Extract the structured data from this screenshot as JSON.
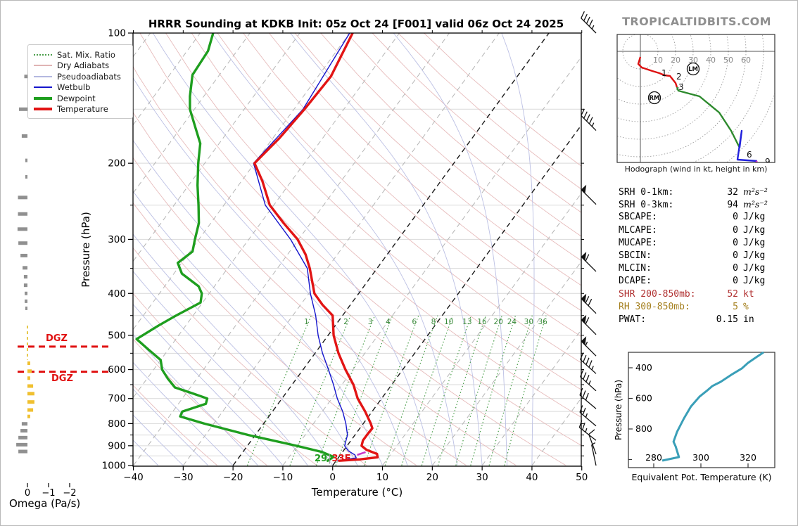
{
  "header": {
    "title": "HRRR Sounding at KDKB Init: 05z Oct 24 [F001] valid 06z Oct 24 2025",
    "logo": "TROPICALTIDBITS.COM"
  },
  "legend": {
    "items": [
      {
        "label": "Sat. Mix. Ratio",
        "style": "dotted",
        "color": "#4a9e4a",
        "width": 2
      },
      {
        "label": "Dry Adiabats",
        "style": "solid",
        "color": "#e0b4b4",
        "width": 2
      },
      {
        "label": "Pseudoadiabats",
        "style": "solid",
        "color": "#b4b8e0",
        "width": 2
      },
      {
        "label": "Wetbulb",
        "style": "solid",
        "color": "#1515cc",
        "width": 2
      },
      {
        "label": "Dewpoint",
        "style": "solid",
        "color": "#1e9e1e",
        "width": 4
      },
      {
        "label": "Temperature",
        "style": "solid",
        "color": "#e21414",
        "width": 4
      }
    ]
  },
  "skewt": {
    "xlabel": "Temperature (°C)",
    "ylabel": "Pressure (hPa)",
    "dgz_label": "DGZ",
    "surface": {
      "dewpoint_label": "29",
      "divider": "|",
      "temperature_label": "33F"
    }
  },
  "omega_axis": {
    "label": "Omega (Pa/s)",
    "ticks": [
      0,
      -1,
      -2
    ]
  },
  "stats": {
    "rows": [
      {
        "label": "SRH 0-1km:",
        "value": "32",
        "unit": "m²s⁻²",
        "math": true,
        "color": "#000000"
      },
      {
        "label": "SRH 0-3km:",
        "value": "94",
        "unit": "m²s⁻²",
        "math": true,
        "color": "#000000"
      },
      {
        "label": "SBCAPE:",
        "value": "0",
        "unit": "J/kg",
        "math": false,
        "color": "#000000"
      },
      {
        "label": "MLCAPE:",
        "value": "0",
        "unit": "J/kg",
        "math": false,
        "color": "#000000"
      },
      {
        "label": "MUCAPE:",
        "value": "0",
        "unit": "J/kg",
        "math": false,
        "color": "#000000"
      },
      {
        "label": "SBCIN:",
        "value": "0",
        "unit": "J/kg",
        "math": false,
        "color": "#000000"
      },
      {
        "label": "MLCIN:",
        "value": "0",
        "unit": "J/kg",
        "math": false,
        "color": "#000000"
      },
      {
        "label": "DCAPE:",
        "value": "0",
        "unit": "J/kg",
        "math": false,
        "color": "#000000"
      },
      {
        "label": "SHR 200-850mb:",
        "value": "52",
        "unit": "kt",
        "math": false,
        "color": "#b03030"
      },
      {
        "label": "RH 300-850mb:",
        "value": "5",
        "unit": "%",
        "math": false,
        "color": "#a5801f"
      },
      {
        "label": "PWAT:",
        "value": "0.15",
        "unit": "in",
        "math": false,
        "color": "#000000"
      }
    ]
  },
  "chart_data": {
    "skewt": {
      "type": "line",
      "title": "HRRR Sounding at KDKB Init: 05z Oct 24 [F001] valid 06z Oct 24 2025",
      "xlabel": "Temperature (°C)",
      "ylabel": "Pressure (hPa)",
      "x_ticks": [
        -40,
        -30,
        -20,
        -10,
        0,
        10,
        20,
        30,
        40,
        50
      ],
      "p_ticks": [
        100,
        200,
        300,
        400,
        500,
        600,
        700,
        800,
        900,
        1000
      ],
      "xlim": [
        -40,
        50
      ],
      "plim": [
        100,
        1000
      ],
      "isotherm_step": 10,
      "highlight_isotherms": [
        0,
        -20
      ],
      "dry_adiabats_theta_K": [
        250,
        260,
        270,
        280,
        290,
        300,
        310,
        320,
        330,
        340,
        350,
        360,
        370,
        380,
        390,
        400,
        410,
        420,
        430,
        440
      ],
      "pseudoadiabats_thetaw_C": [
        -60,
        -55,
        -50,
        -45,
        -40,
        -35,
        -30,
        -25,
        -20,
        -15,
        -10,
        -5,
        0,
        5,
        10,
        15,
        20,
        25,
        30,
        35,
        40
      ],
      "mixing_ratio_g_kg": [
        1,
        2,
        3,
        4,
        6,
        8,
        10,
        13,
        16,
        20,
        24,
        30,
        36
      ],
      "dgz_pressures": [
        531,
        607
      ],
      "lcl_marker": {
        "p": 938,
        "t": 4.0,
        "color": "#c837c8"
      },
      "series": [
        {
          "name": "Temperature",
          "color": "#e21414",
          "width": 3.4,
          "points": [
            [
              100,
              -59.4
            ],
            [
              126,
              -57.4
            ],
            [
              150,
              -57.9
            ],
            [
              175,
              -58.7
            ],
            [
              200,
              -60.0
            ],
            [
              220,
              -55.8
            ],
            [
              250,
              -50.8
            ],
            [
              275,
              -45.4
            ],
            [
              300,
              -40.2
            ],
            [
              325,
              -36.4
            ],
            [
              350,
              -33.5
            ],
            [
              400,
              -28.9
            ],
            [
              425,
              -25.6
            ],
            [
              450,
              -22.0
            ],
            [
              500,
              -18.9
            ],
            [
              550,
              -15.3
            ],
            [
              600,
              -11.5
            ],
            [
              650,
              -7.7
            ],
            [
              700,
              -4.8
            ],
            [
              750,
              -1.4
            ],
            [
              800,
              1.5
            ],
            [
              820,
              2.5
            ],
            [
              850,
              2.4
            ],
            [
              875,
              2.4
            ],
            [
              900,
              2.9
            ],
            [
              920,
              4.5
            ],
            [
              940,
              7.2
            ],
            [
              957,
              7.8
            ],
            [
              968,
              4.5
            ],
            [
              975,
              0.6
            ]
          ]
        },
        {
          "name": "Dewpoint",
          "color": "#1e9e1e",
          "width": 3.4,
          "points": [
            [
              100,
              -87.4
            ],
            [
              110,
              -85.8
            ],
            [
              125,
              -85.4
            ],
            [
              140,
              -82.8
            ],
            [
              150,
              -80.9
            ],
            [
              165,
              -77.2
            ],
            [
              180,
              -73.8
            ],
            [
              200,
              -71.3
            ],
            [
              225,
              -68.2
            ],
            [
              250,
              -65.1
            ],
            [
              275,
              -62.4
            ],
            [
              300,
              -60.8
            ],
            [
              320,
              -59.5
            ],
            [
              340,
              -60.8
            ],
            [
              360,
              -58.4
            ],
            [
              385,
              -53.2
            ],
            [
              400,
              -51.5
            ],
            [
              420,
              -50.4
            ],
            [
              450,
              -53.4
            ],
            [
              475,
              -55.5
            ],
            [
              510,
              -57.9
            ],
            [
              540,
              -53.9
            ],
            [
              570,
              -50.0
            ],
            [
              600,
              -48.3
            ],
            [
              630,
              -45.8
            ],
            [
              660,
              -43.1
            ],
            [
              680,
              -38.9
            ],
            [
              700,
              -35.0
            ],
            [
              720,
              -34.5
            ],
            [
              750,
              -38.1
            ],
            [
              770,
              -37.8
            ],
            [
              800,
              -31.9
            ],
            [
              850,
              -21.4
            ],
            [
              900,
              -10.2
            ],
            [
              930,
              -4.2
            ],
            [
              955,
              -1.1
            ],
            [
              975,
              -1.7
            ]
          ]
        },
        {
          "name": "Wetbulb",
          "color": "#1515cc",
          "width": 1.4,
          "points": [
            [
              100,
              -60.0
            ],
            [
              150,
              -58.2
            ],
            [
              200,
              -60.2
            ],
            [
              250,
              -51.7
            ],
            [
              300,
              -41.6
            ],
            [
              350,
              -34.0
            ],
            [
              400,
              -29.7
            ],
            [
              450,
              -25.4
            ],
            [
              500,
              -22.0
            ],
            [
              550,
              -18.5
            ],
            [
              600,
              -14.9
            ],
            [
              650,
              -11.7
            ],
            [
              700,
              -8.9
            ],
            [
              750,
              -5.9
            ],
            [
              800,
              -3.5
            ],
            [
              850,
              -1.5
            ],
            [
              875,
              -1.0
            ],
            [
              900,
              -0.5
            ],
            [
              925,
              1.0
            ],
            [
              945,
              2.9
            ],
            [
              960,
              3.6
            ],
            [
              975,
              0.3
            ]
          ]
        }
      ]
    },
    "omega": {
      "type": "bar",
      "xlabel": "Omega (Pa/s)",
      "ticks": [
        0,
        -1,
        -2
      ],
      "colors": {
        "positive": "#909090",
        "negative": "#f0c030"
      },
      "dashed_zero_segment_p": [
        475,
        570
      ],
      "bars": [
        [
          126,
          0.15
        ],
        [
          150,
          0.4
        ],
        [
          173,
          0.27
        ],
        [
          197,
          0.1
        ],
        [
          215,
          0.1
        ],
        [
          240,
          0.45
        ],
        [
          262,
          0.45
        ],
        [
          284,
          0.47
        ],
        [
          306,
          0.43
        ],
        [
          327,
          0.33
        ],
        [
          349,
          0.23
        ],
        [
          366,
          0.17
        ],
        [
          383,
          0.17
        ],
        [
          400,
          0.13
        ],
        [
          417,
          0.13
        ],
        [
          433,
          0.1
        ],
        [
          580,
          -0.13
        ],
        [
          605,
          -0.2
        ],
        [
          628,
          -0.13
        ],
        [
          655,
          -0.27
        ],
        [
          682,
          -0.33
        ],
        [
          713,
          -0.33
        ],
        [
          744,
          -0.27
        ],
        [
          770,
          -0.13
        ],
        [
          801,
          0.27
        ],
        [
          831,
          0.33
        ],
        [
          862,
          0.43
        ],
        [
          895,
          0.53
        ],
        [
          928,
          0.43
        ]
      ]
    },
    "wind_barbs": {
      "units": "kt",
      "barbs": [
        [
          100,
          45,
          225
        ],
        [
          168,
          45,
          225
        ],
        [
          249,
          50,
          225
        ],
        [
          356,
          60,
          225
        ],
        [
          445,
          70,
          225
        ],
        [
          498,
          60,
          225
        ],
        [
          558,
          55,
          225
        ],
        [
          613,
          45,
          222
        ],
        [
          672,
          35,
          222
        ],
        [
          739,
          30,
          220
        ],
        [
          810,
          25,
          220
        ],
        [
          875,
          25,
          218
        ],
        [
          941,
          10,
          250
        ],
        [
          1000,
          5,
          258
        ]
      ]
    },
    "hodograph": {
      "caption": "Hodograph (wind in kt, height in km)",
      "ring_step_kt": 10,
      "ring_labels": [
        10,
        20,
        30,
        40,
        50,
        60
      ],
      "segments": [
        {
          "color": "#dd1111",
          "points": [
            [
              0,
              3.2
            ],
            [
              -1.2,
              7.2
            ],
            [
              0.8,
              9.2
            ],
            [
              6.8,
              11.2
            ],
            [
              10.8,
              12.4
            ],
            [
              13.6,
              13.6
            ],
            [
              16.8,
              14.0
            ],
            [
              20.0,
              18.0
            ],
            [
              20.8,
              20.4
            ]
          ]
        },
        {
          "color": "#2d8a2d",
          "points": [
            [
              20.8,
              20.4
            ],
            [
              21.6,
              22.4
            ],
            [
              33.6,
              25.6
            ],
            [
              44.8,
              34.8
            ],
            [
              51.6,
              45.2
            ],
            [
              56.4,
              54.8
            ]
          ]
        },
        {
          "color": "#2222dd",
          "points": [
            [
              56.4,
              54.8
            ],
            [
              57.6,
              45.2
            ],
            [
              55.2,
              61.6
            ],
            [
              66.4,
              62.4
            ]
          ]
        },
        {
          "color": "#cc33cc",
          "points": [
            [
              66.4,
              62.4
            ],
            [
              64.0,
              64.8
            ],
            [
              70.8,
              63.6
            ],
            [
              69.2,
              66.0
            ]
          ]
        }
      ],
      "height_labels": [
        {
          "t": "1",
          "u": 11.2,
          "v": 12.4
        },
        {
          "t": "2",
          "u": 19.6,
          "v": 14.4
        },
        {
          "t": "3",
          "u": 20.8,
          "v": 20.4
        },
        {
          "t": "6",
          "u": 59.6,
          "v": 58.8
        },
        {
          "t": "9",
          "u": 70.0,
          "v": 62.8
        }
      ],
      "markers": [
        {
          "t": "LM",
          "u": 30.0,
          "v": 10.0
        },
        {
          "t": "RM",
          "u": 8.0,
          "v": 26.4
        }
      ]
    },
    "theta_e": {
      "type": "line",
      "xlabel": "Equivalent Pot. Temperature (K)",
      "ylabel": "Pressure (hPa)",
      "x_ticks": [
        280,
        300,
        320
      ],
      "y_ticks": [
        400,
        600,
        800
      ],
      "color": "#3a9fb8",
      "points": [
        [
          283.6,
          1007
        ],
        [
          290.7,
          984
        ],
        [
          289.3,
          915
        ],
        [
          288.4,
          883
        ],
        [
          289.9,
          818
        ],
        [
          292.8,
          731
        ],
        [
          295.8,
          653
        ],
        [
          299.4,
          589
        ],
        [
          302.4,
          552
        ],
        [
          304.8,
          520
        ],
        [
          308.4,
          492
        ],
        [
          313.4,
          441
        ],
        [
          317.3,
          405
        ],
        [
          320.0,
          368
        ],
        [
          323.0,
          336
        ],
        [
          326.6,
          299
        ]
      ]
    }
  }
}
